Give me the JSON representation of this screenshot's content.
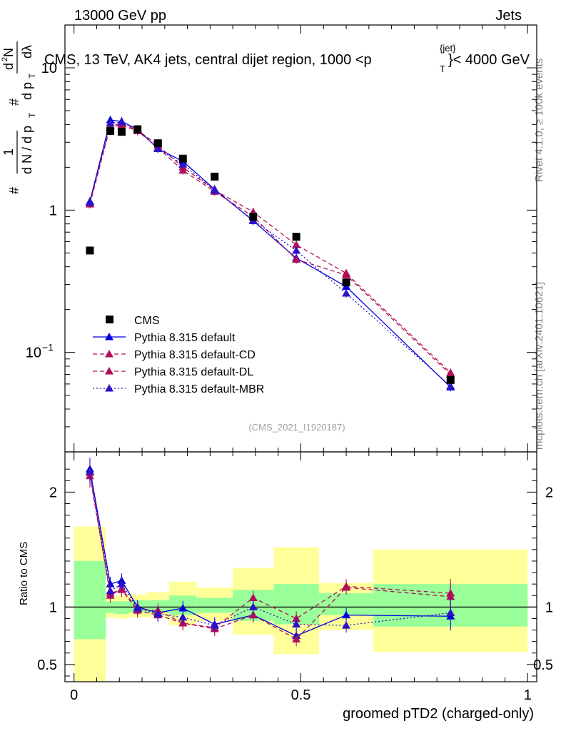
{
  "header": {
    "left": "13000 GeV pp",
    "right": "Jets",
    "title_main": "CMS, 13 TeV, AK4 jets, central dijet region, 1000 <p",
    "title_sup": "{jet}",
    "title_sub": "T",
    "title_end": "}< 4000 GeV",
    "analysis_tag": "(CMS_2021_I1920187)"
  },
  "side_labels": {
    "rivet": "Rivet 4.1.0, ≥ 100k events",
    "mcplots": "mcplots.cern.ch [arXiv:2401.10621]"
  },
  "top_ylabel": {
    "p1": "#",
    "p2": "1",
    "p3": "d N / d p",
    "p3_sub": "T",
    "p4": "#",
    "p5": "d p",
    "p5_sub": "T",
    "p6": "d",
    "p6_sup": "2",
    "p6_end": "N",
    "p7": "dλ"
  },
  "colors": {
    "data": "#000000",
    "default": "#0000dd",
    "cd": "#b0105a",
    "dl": "#b0105a",
    "mbr": "#2c12c8",
    "band_inner": "#99ff99",
    "band_outer": "#ffff99"
  },
  "chart_data": {
    "type": "line",
    "xlabel": "groomed pTD2 (charged-only)",
    "top_ylabel": "1/dN/dpT # dpT/dN d²N/dλ",
    "bottom_ylabel": "Ratio to CMS",
    "top_yscale": "log",
    "top_ylim": [
      0.02,
      20
    ],
    "bottom_ylim": [
      0.35,
      2.35
    ],
    "xlim": [
      -0.02,
      1.02
    ],
    "x_ticks": [
      "0",
      "0.5",
      "1"
    ],
    "top_y_ticks": [
      "10",
      "1",
      "10^{-1}"
    ],
    "bottom_y_ticks": [
      "2",
      "1",
      "0.5"
    ],
    "bins": [
      [
        0.0,
        0.07
      ],
      [
        0.07,
        0.09
      ],
      [
        0.09,
        0.12
      ],
      [
        0.12,
        0.16
      ],
      [
        0.16,
        0.21
      ],
      [
        0.21,
        0.27
      ],
      [
        0.27,
        0.35
      ],
      [
        0.35,
        0.44
      ],
      [
        0.44,
        0.54
      ],
      [
        0.54,
        0.66
      ],
      [
        0.66,
        1.0
      ]
    ],
    "x": [
      0.035,
      0.08,
      0.105,
      0.14,
      0.185,
      0.24,
      0.31,
      0.395,
      0.49,
      0.6,
      0.83
    ],
    "cms": {
      "name": "CMS",
      "values": [
        0.52,
        3.6,
        3.55,
        3.7,
        2.95,
        2.3,
        1.72,
        0.9,
        0.65,
        0.31,
        0.064
      ],
      "band_inner": [
        [
          0.72,
          1.4
        ],
        [
          0.95,
          1.05
        ],
        [
          0.94,
          1.05
        ],
        [
          0.95,
          1.06
        ],
        [
          0.95,
          1.06
        ],
        [
          0.93,
          1.1
        ],
        [
          0.95,
          1.08
        ],
        [
          0.88,
          1.15
        ],
        [
          0.85,
          1.2
        ],
        [
          0.93,
          1.12
        ],
        [
          0.83,
          1.2
        ]
      ],
      "band_outer": [
        [
          0.0,
          1.7
        ],
        [
          0.91,
          1.09
        ],
        [
          0.9,
          1.1
        ],
        [
          0.91,
          1.11
        ],
        [
          0.91,
          1.13
        ],
        [
          0.84,
          1.22
        ],
        [
          0.88,
          1.17
        ],
        [
          0.76,
          1.34
        ],
        [
          0.59,
          1.52
        ],
        [
          0.8,
          1.21
        ],
        [
          0.61,
          1.5
        ]
      ]
    },
    "series": [
      {
        "name": "Pythia 8.315 default",
        "style": "solid",
        "color": "#0000dd",
        "values": [
          1.15,
          4.3,
          4.2,
          3.7,
          2.7,
          2.2,
          1.4,
          0.84,
          0.46,
          0.29,
          0.057
        ],
        "ratio": [
          2.2,
          1.2,
          1.23,
          1.0,
          0.95,
          0.99,
          0.85,
          0.93,
          0.75,
          0.93,
          0.92
        ]
      },
      {
        "name": "Pythia 8.315 default-CD",
        "style": "dashed",
        "color": "#b0105a",
        "values": [
          1.12,
          3.95,
          4.05,
          3.65,
          2.85,
          2.0,
          1.38,
          0.97,
          0.57,
          0.36,
          0.072
        ],
        "ratio": [
          2.17,
          1.1,
          1.16,
          0.98,
          0.97,
          0.86,
          0.82,
          1.08,
          0.9,
          1.18,
          1.12
        ]
      },
      {
        "name": "Pythia 8.315 default-DL",
        "style": "dashed",
        "color": "#b0105a",
        "values": [
          1.1,
          3.9,
          3.95,
          3.6,
          2.75,
          1.9,
          1.35,
          0.9,
          0.45,
          0.35,
          0.07
        ],
        "ratio": [
          2.14,
          1.12,
          1.15,
          0.97,
          0.93,
          0.86,
          0.81,
          0.93,
          0.72,
          1.17,
          1.09
        ]
      },
      {
        "name": "Pythia 8.315 default-MBR",
        "style": "dotted",
        "color": "#2c12c8",
        "values": [
          1.13,
          4.1,
          4.15,
          3.68,
          2.7,
          2.1,
          1.38,
          0.85,
          0.52,
          0.26,
          0.058
        ],
        "ratio": [
          2.18,
          1.14,
          1.2,
          0.99,
          0.94,
          0.91,
          0.84,
          1.0,
          0.85,
          0.84,
          0.95
        ]
      }
    ],
    "legend": {
      "placement": "lower-left",
      "entries": [
        "CMS",
        "Pythia 8.315 default",
        "Pythia 8.315 default-CD",
        "Pythia 8.315 default-DL",
        "Pythia 8.315 default-MBR"
      ]
    }
  }
}
